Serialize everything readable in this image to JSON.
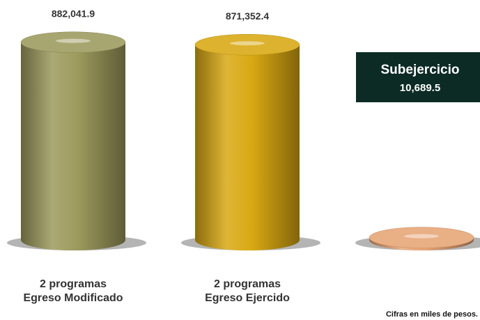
{
  "chart_data": {
    "type": "bar",
    "categories": [
      [
        "2 programas",
        "Egreso Modificado"
      ],
      [
        "2 programas",
        "Egreso Ejercido"
      ],
      [
        "Subejercicio"
      ]
    ],
    "values": [
      882041.9,
      871352.4,
      10689.5
    ],
    "value_labels": [
      "882,041.9",
      "871,352.4",
      "10,689.5"
    ],
    "colors": [
      "#9c9a5c",
      "#d8a812",
      "#e6a474"
    ],
    "ylim": [
      0,
      900000
    ],
    "note": "Cifras en miles de pesos."
  }
}
